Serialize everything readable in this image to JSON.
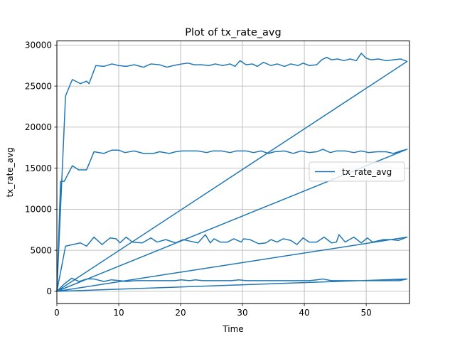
{
  "chart_data": {
    "type": "line",
    "title": "Plot of tx_rate_avg",
    "xlabel": "Time",
    "ylabel": "tx_rate_avg",
    "xlim": [
      0,
      57
    ],
    "ylim": [
      -1500,
      30500
    ],
    "xticks": [
      0,
      10,
      20,
      30,
      40,
      50
    ],
    "yticks": [
      0,
      5000,
      10000,
      15000,
      20000,
      25000,
      30000
    ],
    "grid": true,
    "legend_position": "center-right",
    "series": [
      {
        "name": "tx_rate_avg",
        "color": "#1f77b4",
        "points": [
          [
            0,
            0
          ],
          [
            0.6,
            13400
          ],
          [
            1.2,
            13400
          ],
          [
            2.5,
            15300
          ],
          [
            3.5,
            14800
          ],
          [
            4.8,
            14800
          ],
          [
            6,
            17000
          ],
          [
            7.6,
            16800
          ],
          [
            8.9,
            17200
          ],
          [
            10,
            17200
          ],
          [
            11,
            16900
          ],
          [
            12.5,
            17100
          ],
          [
            14,
            16800
          ],
          [
            15.6,
            16800
          ],
          [
            16.6,
            17000
          ],
          [
            18.2,
            16800
          ],
          [
            19.2,
            17000
          ],
          [
            20.2,
            17100
          ],
          [
            21.8,
            17100
          ],
          [
            22.8,
            17100
          ],
          [
            24.2,
            16900
          ],
          [
            25.2,
            17100
          ],
          [
            26.6,
            17100
          ],
          [
            28,
            16900
          ],
          [
            29,
            17100
          ],
          [
            30.6,
            17100
          ],
          [
            31.8,
            16900
          ],
          [
            33,
            17100
          ],
          [
            34.2,
            16800
          ],
          [
            35.2,
            17000
          ],
          [
            36.8,
            17100
          ],
          [
            38.2,
            16800
          ],
          [
            39.5,
            17100
          ],
          [
            40.8,
            16900
          ],
          [
            42,
            17000
          ],
          [
            43,
            17300
          ],
          [
            44.2,
            16900
          ],
          [
            45.2,
            17100
          ],
          [
            46.6,
            17100
          ],
          [
            48,
            16900
          ],
          [
            49.2,
            17100
          ],
          [
            50.4,
            16900
          ],
          [
            51.8,
            17000
          ],
          [
            53.2,
            17000
          ],
          [
            54.4,
            16800
          ],
          [
            55.6,
            17100
          ],
          [
            56.6,
            17300
          ],
          [
            0,
            0
          ],
          [
            1.4,
            23800
          ],
          [
            2.5,
            25800
          ],
          [
            3.8,
            25300
          ],
          [
            4.8,
            25600
          ],
          [
            5.2,
            25300
          ],
          [
            6.3,
            27500
          ],
          [
            7.6,
            27400
          ],
          [
            8.9,
            27700
          ],
          [
            10,
            27500
          ],
          [
            11.2,
            27400
          ],
          [
            12.5,
            27600
          ],
          [
            14,
            27300
          ],
          [
            15.2,
            27700
          ],
          [
            16.6,
            27600
          ],
          [
            17.8,
            27300
          ],
          [
            18.8,
            27500
          ],
          [
            20.2,
            27700
          ],
          [
            21.2,
            27800
          ],
          [
            22.2,
            27600
          ],
          [
            23.4,
            27600
          ],
          [
            24.6,
            27500
          ],
          [
            25.6,
            27700
          ],
          [
            26.8,
            27500
          ],
          [
            28,
            27700
          ],
          [
            28.8,
            27400
          ],
          [
            29.6,
            28100
          ],
          [
            30.6,
            27600
          ],
          [
            31.6,
            27700
          ],
          [
            32.4,
            27400
          ],
          [
            33.4,
            27900
          ],
          [
            34.6,
            27500
          ],
          [
            35.6,
            27700
          ],
          [
            36.8,
            27400
          ],
          [
            37.8,
            27700
          ],
          [
            39,
            27500
          ],
          [
            39.8,
            27800
          ],
          [
            40.8,
            27500
          ],
          [
            42,
            27600
          ],
          [
            42.8,
            28200
          ],
          [
            43.6,
            28500
          ],
          [
            44.4,
            28200
          ],
          [
            45.4,
            28300
          ],
          [
            46.4,
            28100
          ],
          [
            47.4,
            28300
          ],
          [
            48.4,
            28100
          ],
          [
            49.2,
            29000
          ],
          [
            50,
            28400
          ],
          [
            50.8,
            28200
          ],
          [
            52,
            28300
          ],
          [
            53.2,
            28100
          ],
          [
            54.4,
            28200
          ],
          [
            55.6,
            28300
          ],
          [
            56.6,
            28000
          ],
          [
            0,
            0
          ],
          [
            1.4,
            5500
          ],
          [
            2.6,
            5700
          ],
          [
            3.8,
            5900
          ],
          [
            4.8,
            5500
          ],
          [
            6,
            6600
          ],
          [
            7.3,
            5700
          ],
          [
            8.6,
            6500
          ],
          [
            9.6,
            6400
          ],
          [
            10.2,
            5900
          ],
          [
            11.2,
            6600
          ],
          [
            12.2,
            6000
          ],
          [
            13.8,
            5900
          ],
          [
            15.2,
            6500
          ],
          [
            16.2,
            6000
          ],
          [
            17.6,
            6300
          ],
          [
            19.2,
            5900
          ],
          [
            20.4,
            6300
          ],
          [
            21.6,
            6100
          ],
          [
            22.8,
            5900
          ],
          [
            24,
            6900
          ],
          [
            24.8,
            5900
          ],
          [
            25.4,
            6400
          ],
          [
            26.4,
            6000
          ],
          [
            27.6,
            6000
          ],
          [
            28.6,
            6400
          ],
          [
            29.8,
            6000
          ],
          [
            30.2,
            6400
          ],
          [
            31.2,
            6300
          ],
          [
            32.6,
            5800
          ],
          [
            33.8,
            5900
          ],
          [
            34.6,
            6300
          ],
          [
            35.6,
            6000
          ],
          [
            36.6,
            6400
          ],
          [
            37.8,
            6200
          ],
          [
            38.8,
            5700
          ],
          [
            39.8,
            6500
          ],
          [
            40.8,
            6000
          ],
          [
            42,
            6000
          ],
          [
            43.2,
            6600
          ],
          [
            44.4,
            5900
          ],
          [
            45.2,
            6000
          ],
          [
            45.6,
            6900
          ],
          [
            46.6,
            6000
          ],
          [
            48,
            6600
          ],
          [
            49.2,
            5900
          ],
          [
            50.2,
            6500
          ],
          [
            51,
            6000
          ],
          [
            52.8,
            6300
          ],
          [
            54,
            6300
          ],
          [
            55.2,
            6200
          ],
          [
            56.6,
            6600
          ],
          [
            0,
            0
          ],
          [
            1.2,
            900
          ],
          [
            2.4,
            1600
          ],
          [
            3.6,
            1200
          ],
          [
            4.8,
            1500
          ],
          [
            6,
            1500
          ],
          [
            7.6,
            1200
          ],
          [
            8.8,
            1400
          ],
          [
            10.2,
            1300
          ],
          [
            11.2,
            1200
          ],
          [
            12.8,
            1300
          ],
          [
            16.2,
            1300
          ],
          [
            19,
            1300
          ],
          [
            20.2,
            1400
          ],
          [
            21.4,
            1300
          ],
          [
            22.4,
            1400
          ],
          [
            23.6,
            1300
          ],
          [
            25.2,
            1300
          ],
          [
            28.2,
            1300
          ],
          [
            29.4,
            1400
          ],
          [
            30.6,
            1300
          ],
          [
            32.2,
            1300
          ],
          [
            36,
            1300
          ],
          [
            40.8,
            1300
          ],
          [
            42,
            1400
          ],
          [
            43,
            1500
          ],
          [
            44.4,
            1300
          ],
          [
            48.4,
            1300
          ],
          [
            50.4,
            1300
          ],
          [
            52.6,
            1300
          ],
          [
            55.4,
            1300
          ],
          [
            56.6,
            1500
          ],
          [
            0,
            0
          ],
          [
            56.6,
            28000
          ],
          [
            0,
            0
          ],
          [
            56.6,
            17300
          ],
          [
            0,
            0
          ],
          [
            56.6,
            6600
          ]
        ]
      }
    ]
  }
}
